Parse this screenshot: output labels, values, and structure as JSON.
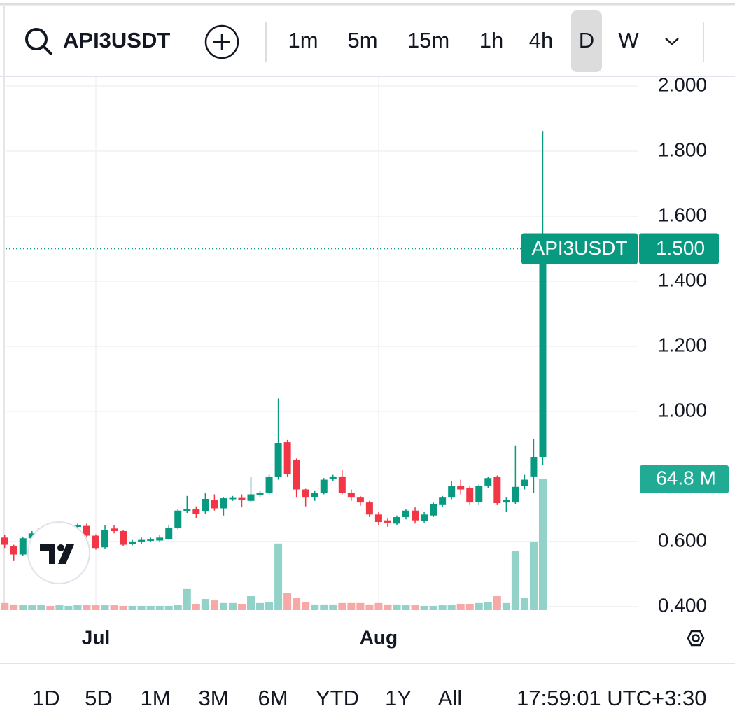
{
  "toolbar": {
    "symbol": "API3USDT",
    "intervals": [
      "1m",
      "5m",
      "15m",
      "1h",
      "4h",
      "D",
      "W"
    ],
    "selected_interval": "D"
  },
  "chart_data": {
    "type": "candlestick",
    "categories": [
      null,
      null,
      null,
      null,
      null,
      null,
      null,
      null,
      null,
      null,
      "Jul",
      null,
      null,
      null,
      null,
      null,
      null,
      null,
      null,
      null,
      null,
      null,
      null,
      null,
      null,
      null,
      null,
      null,
      null,
      null,
      null,
      null,
      null,
      null,
      null,
      null,
      null,
      null,
      null,
      null,
      null,
      "Aug",
      null,
      null,
      null,
      null,
      null,
      null,
      null,
      null,
      null,
      null,
      null,
      null,
      null,
      null,
      null,
      null,
      null,
      null
    ],
    "open": [
      0.612,
      0.585,
      0.56,
      0.61,
      0.625,
      0.64,
      0.625,
      0.638,
      0.645,
      0.648,
      0.618,
      0.582,
      0.64,
      0.632,
      0.592,
      0.598,
      0.602,
      0.603,
      0.608,
      0.641,
      0.693,
      0.7,
      0.692,
      0.728,
      0.702,
      0.73,
      0.734,
      0.725,
      0.744,
      0.75,
      0.798,
      0.905,
      0.85,
      0.76,
      0.736,
      0.75,
      0.792,
      0.8,
      0.75,
      0.735,
      0.72,
      0.683,
      0.665,
      0.655,
      0.675,
      0.695,
      0.663,
      0.68,
      0.712,
      0.735,
      0.77,
      0.765,
      0.722,
      0.772,
      0.798,
      0.72,
      0.72,
      0.77,
      0.8,
      0.86
    ],
    "high": [
      0.62,
      0.59,
      0.615,
      0.632,
      0.645,
      0.648,
      0.64,
      0.65,
      0.655,
      0.655,
      0.622,
      0.65,
      0.65,
      0.635,
      0.605,
      0.612,
      0.612,
      0.62,
      0.65,
      0.7,
      0.74,
      0.708,
      0.748,
      0.745,
      0.735,
      0.74,
      0.745,
      0.8,
      0.755,
      0.805,
      1.04,
      0.912,
      0.855,
      0.762,
      0.755,
      0.795,
      0.805,
      0.82,
      0.76,
      0.74,
      0.725,
      0.69,
      0.672,
      0.68,
      0.7,
      0.705,
      0.69,
      0.72,
      0.74,
      0.785,
      0.79,
      0.772,
      0.775,
      0.8,
      0.803,
      0.735,
      0.895,
      0.805,
      0.915,
      1.862
    ],
    "low": [
      0.58,
      0.54,
      0.555,
      0.6,
      0.618,
      0.62,
      0.618,
      0.63,
      0.64,
      0.612,
      0.575,
      0.578,
      0.625,
      0.585,
      0.588,
      0.592,
      0.598,
      0.6,
      0.605,
      0.638,
      0.688,
      0.672,
      0.685,
      0.695,
      0.68,
      0.725,
      0.705,
      0.72,
      0.738,
      0.745,
      0.79,
      0.8,
      0.735,
      0.708,
      0.725,
      0.745,
      0.785,
      0.745,
      0.725,
      0.71,
      0.675,
      0.65,
      0.645,
      0.65,
      0.668,
      0.655,
      0.658,
      0.675,
      0.705,
      0.73,
      0.745,
      0.712,
      0.712,
      0.765,
      0.712,
      0.69,
      0.715,
      0.76,
      0.75,
      0.835
    ],
    "close": [
      0.59,
      0.56,
      0.61,
      0.625,
      0.64,
      0.625,
      0.638,
      0.645,
      0.65,
      0.618,
      0.58,
      0.635,
      0.632,
      0.59,
      0.6,
      0.605,
      0.606,
      0.612,
      0.641,
      0.695,
      0.7,
      0.684,
      0.731,
      0.702,
      0.733,
      0.734,
      0.728,
      0.745,
      0.75,
      0.798,
      0.903,
      0.808,
      0.76,
      0.735,
      0.75,
      0.79,
      0.8,
      0.75,
      0.735,
      0.72,
      0.683,
      0.66,
      0.658,
      0.675,
      0.695,
      0.665,
      0.683,
      0.715,
      0.735,
      0.77,
      0.76,
      0.72,
      0.77,
      0.795,
      0.718,
      0.728,
      0.768,
      0.79,
      0.86,
      1.5
    ],
    "volume": [
      3.5,
      2.8,
      2.4,
      2.4,
      2.4,
      2.1,
      2.4,
      2.1,
      2.4,
      2.4,
      2.4,
      2.4,
      2.4,
      2.1,
      2.1,
      2.1,
      2.1,
      2.1,
      2.1,
      2.4,
      10.4,
      3.1,
      5.5,
      4.8,
      3.5,
      3.5,
      3.1,
      6.9,
      3.5,
      4.1,
      32.8,
      8.3,
      5.9,
      4.1,
      2.8,
      2.8,
      2.8,
      3.5,
      3.5,
      3.5,
      2.8,
      3.5,
      2.8,
      2.8,
      2.4,
      2.4,
      2.1,
      2.1,
      2.4,
      2.4,
      3.1,
      3.1,
      3.5,
      4.1,
      6.9,
      3.5,
      29.0,
      5.9,
      33.5,
      64.8
    ],
    "up_color": "#089981",
    "down_color": "#f23645",
    "volume_up_color": "#92d2c8",
    "volume_down_color": "#f7a9a7",
    "ylim": [
      0.389,
      2.028
    ],
    "yticks": [
      {
        "value": 0.4,
        "label": "0.400"
      },
      {
        "value": 0.6,
        "label": "0.600"
      },
      {
        "value": 1,
        "label": "1.000"
      },
      {
        "value": 1.2,
        "label": "1.200"
      },
      {
        "value": 1.4,
        "label": "1.400"
      },
      {
        "value": 1.6,
        "label": "1.600"
      },
      {
        "value": 1.8,
        "label": "1.800"
      },
      {
        "value": 2,
        "label": "2.000"
      }
    ],
    "volume_lim": [
      0,
      262.6
    ],
    "grid": true,
    "price_label": {
      "symbol": "API3USDT",
      "value": 1.5,
      "label": "1.500"
    },
    "volume_label": {
      "value": 64.8,
      "label": "64.8 M"
    }
  },
  "range_bar": {
    "ranges": [
      "1D",
      "5D",
      "1M",
      "3M",
      "6M",
      "YTD",
      "1Y",
      "All"
    ],
    "time": "17:59:01 UTC+3:30"
  }
}
